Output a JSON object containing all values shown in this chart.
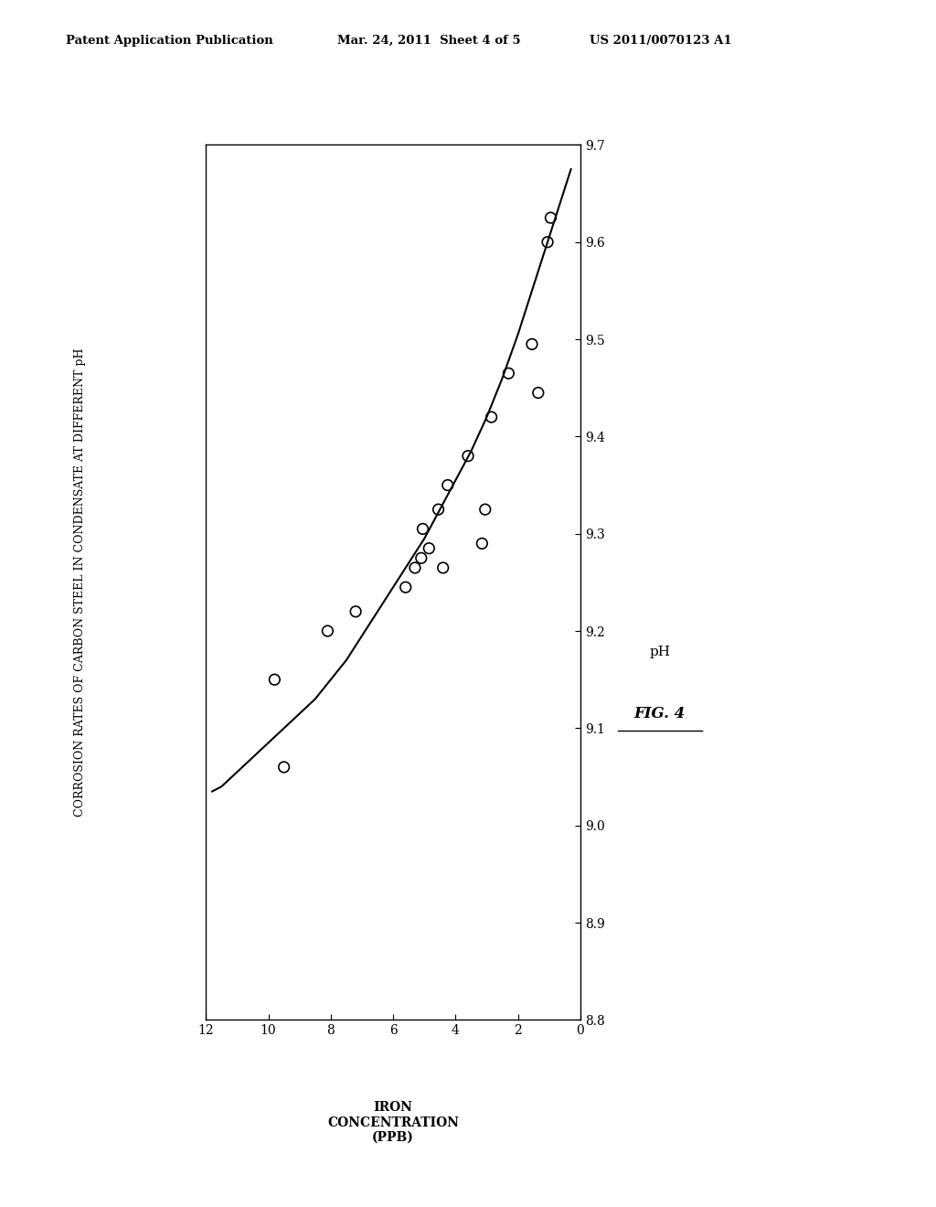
{
  "header_left": "Patent Application Publication",
  "header_center": "Mar. 24, 2011  Sheet 4 of 5",
  "header_right": "US 2011/0070123 A1",
  "ylabel": "CORROSION RATES OF CARBON STEEL IN CONDENSATE AT DIFFERENT pH",
  "xlabel": "IRON\nCONCENTRATION\n(PPB)",
  "right_ylabel": "pH",
  "figure_label": "FIG. 4",
  "x_min": 0,
  "x_max": 12,
  "y_min": 8.8,
  "y_max": 9.7,
  "x_ticks": [
    0,
    2,
    4,
    6,
    8,
    10,
    12
  ],
  "y_ticks": [
    8.8,
    8.9,
    9.0,
    9.1,
    9.2,
    9.3,
    9.4,
    9.5,
    9.6,
    9.7
  ],
  "scatter_x": [
    9.5,
    9.8,
    8.1,
    7.2,
    5.6,
    5.3,
    5.1,
    4.85,
    5.05,
    4.55,
    4.25,
    4.4,
    3.6,
    3.15,
    3.05,
    2.85,
    2.3,
    1.55,
    1.35,
    1.05,
    0.95
  ],
  "scatter_y": [
    9.06,
    9.15,
    9.2,
    9.22,
    9.245,
    9.265,
    9.275,
    9.285,
    9.305,
    9.325,
    9.35,
    9.265,
    9.38,
    9.29,
    9.325,
    9.42,
    9.465,
    9.495,
    9.445,
    9.6,
    9.625
  ],
  "curve_x": [
    11.8,
    11.5,
    11.0,
    10.5,
    10.0,
    9.5,
    9.0,
    8.5,
    8.0,
    7.5,
    7.0,
    6.5,
    6.0,
    5.5,
    5.0,
    4.5,
    4.0,
    3.5,
    3.0,
    2.5,
    2.0,
    1.5,
    1.0,
    0.6,
    0.3
  ],
  "curve_y": [
    9.035,
    9.04,
    9.055,
    9.07,
    9.085,
    9.1,
    9.115,
    9.13,
    9.15,
    9.17,
    9.195,
    9.22,
    9.245,
    9.27,
    9.295,
    9.325,
    9.355,
    9.385,
    9.42,
    9.46,
    9.505,
    9.555,
    9.605,
    9.645,
    9.675
  ],
  "background_color": "#ffffff",
  "line_color": "#000000",
  "scatter_color": "#000000",
  "text_color": "#000000"
}
